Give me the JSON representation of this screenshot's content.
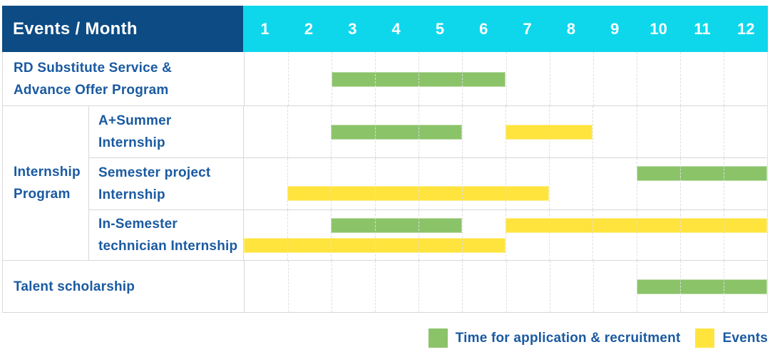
{
  "header": {
    "label": "Events / Month",
    "months": [
      "1",
      "2",
      "3",
      "4",
      "5",
      "6",
      "7",
      "8",
      "9",
      "10",
      "11",
      "12"
    ]
  },
  "legend": {
    "application_label": "Time for application & recruitment",
    "events_label": "Events"
  },
  "colors": {
    "header_navy": "#0C4B84",
    "header_cyan": "#0ED7EC",
    "application_green": "#8BC369",
    "events_yellow": "#FFE43D",
    "label_blue": "#1A5AA1"
  },
  "chart_data": {
    "type": "bar",
    "subtype": "gantt",
    "title": "Events / Month",
    "x_axis": {
      "label": "Month",
      "ticks": [
        1,
        2,
        3,
        4,
        5,
        6,
        7,
        8,
        9,
        10,
        11,
        12
      ],
      "range": [
        1,
        12
      ]
    },
    "grid": true,
    "legend_position": "bottom-right",
    "series_legend": [
      "Time for application & recruitment",
      "Events"
    ],
    "group_label": {
      "text": "Internship Program",
      "line1": "Internship",
      "line2": "Program"
    },
    "rows": [
      {
        "label": "RD Substitute Service & Advance Offer Program",
        "label_line1": "RD Substitute Service &",
        "label_line2": "Advance Offer Program",
        "group": "",
        "bars": [
          {
            "type": "application",
            "series": "Time for application & recruitment",
            "start_month": 3,
            "end_month": 6,
            "line": "center"
          }
        ]
      },
      {
        "label": "A+Summer Internship",
        "label_line1": "A+Summer",
        "label_line2": "Internship",
        "group": "Internship Program",
        "bars": [
          {
            "type": "application",
            "series": "Time for application & recruitment",
            "start_month": 3,
            "end_month": 5,
            "line": "center"
          },
          {
            "type": "events",
            "series": "Events",
            "start_month": 7,
            "end_month": 8,
            "line": "center"
          }
        ]
      },
      {
        "label": "Semester project Internship",
        "label_line1": "Semester project",
        "label_line2": "Internship",
        "group": "Internship Program",
        "bars": [
          {
            "type": "application",
            "series": "Time for application & recruitment",
            "start_month": 10,
            "end_month": 12,
            "line": "top"
          },
          {
            "type": "events",
            "series": "Events",
            "start_month": 2,
            "end_month": 7,
            "line": "bottom"
          }
        ]
      },
      {
        "label": "In-Semester technician Internship",
        "label_line1": "In-Semester",
        "label_line2": "technician Internship",
        "group": "Internship Program",
        "bars": [
          {
            "type": "application",
            "series": "Time for application & recruitment",
            "start_month": 3,
            "end_month": 5,
            "line": "top"
          },
          {
            "type": "events",
            "series": "Events",
            "start_month": 7,
            "end_month": 12,
            "line": "top"
          },
          {
            "type": "events",
            "series": "Events",
            "start_month": 1,
            "end_month": 6,
            "line": "bottom"
          }
        ]
      },
      {
        "label": "Talent scholarship",
        "label_line1": "Talent scholarship",
        "label_line2": "",
        "group": "",
        "bars": [
          {
            "type": "application",
            "series": "Time for application & recruitment",
            "start_month": 10,
            "end_month": 12,
            "line": "center"
          }
        ]
      }
    ]
  }
}
